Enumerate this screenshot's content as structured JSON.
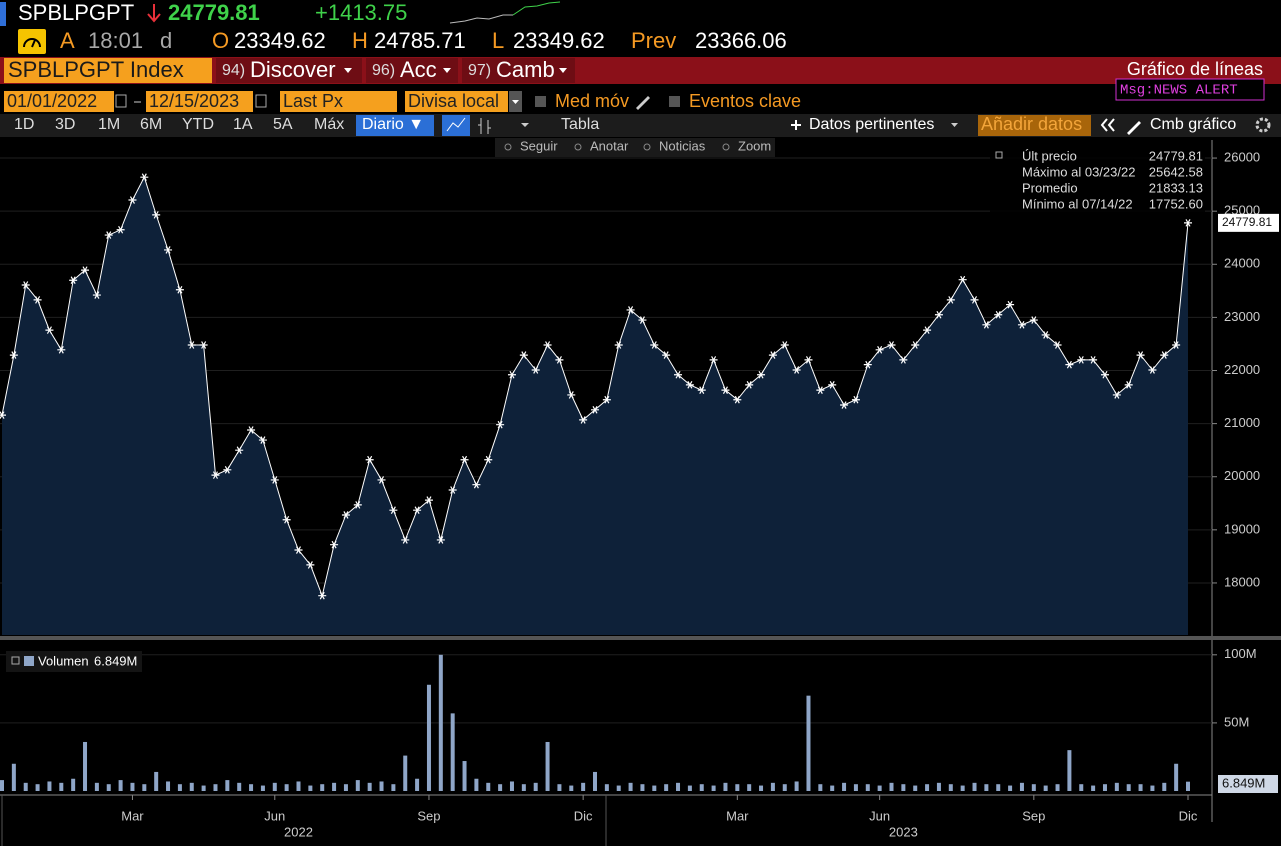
{
  "header": {
    "ticker": "SPBLPGPT",
    "last": "24779.81",
    "change": "+1413.75",
    "status": "A",
    "time": "18:01",
    "time_flag": "d",
    "open_label": "O",
    "open": "23349.62",
    "high_label": "H",
    "high": "24785.71",
    "low_label": "L",
    "low": "23349.62",
    "prev_label": "Prev",
    "prev": "23366.06"
  },
  "menu": {
    "security": "SPBLPGPT Index",
    "items": [
      {
        "num": "94)",
        "label": "Discover"
      },
      {
        "num": "96)",
        "label": "Acc"
      },
      {
        "num": "97)",
        "label": "Camb"
      }
    ],
    "title": "Gráfico de líneas",
    "msg": "Msg:NEWS ALERT"
  },
  "controls": {
    "start": "01/01/2022",
    "end": "12/15/2023",
    "field": "Last Px",
    "currency": "Divisa local",
    "ma": "Med móv",
    "events": "Eventos clave"
  },
  "toolbar": {
    "periods": [
      "1D",
      "3D",
      "1M",
      "6M",
      "YTD",
      "1A",
      "5A",
      "Máx"
    ],
    "frequency": "Diario ▼",
    "table": "Tabla",
    "related": "Datos pertinentes",
    "add": "Añadir datos",
    "change_chart": "Cmb gráfico"
  },
  "tools": [
    "Seguir",
    "Anotar",
    "Noticias",
    "Zoom"
  ],
  "chart_data": [
    {
      "type": "line",
      "categories": [
        null,
        null,
        null,
        null,
        null,
        null,
        null,
        null,
        null,
        null,
        null,
        "Mar",
        null,
        null,
        null,
        null,
        null,
        null,
        null,
        null,
        null,
        null,
        null,
        "Jun",
        null,
        null,
        null,
        null,
        null,
        null,
        null,
        null,
        null,
        null,
        null,
        null,
        "Sep",
        null,
        null,
        null,
        null,
        null,
        null,
        null,
        null,
        null,
        null,
        null,
        null,
        "Dic",
        null,
        null,
        null,
        null,
        null,
        null,
        null,
        null,
        null,
        null,
        null,
        null,
        "Mar",
        null,
        null,
        null,
        null,
        null,
        null,
        null,
        null,
        null,
        null,
        null,
        "Jun",
        null,
        null,
        null,
        null,
        null,
        null,
        null,
        null,
        null,
        null,
        null,
        null,
        "Sep",
        null,
        null,
        null,
        null,
        null,
        null,
        null,
        null,
        null,
        null,
        null,
        null,
        "Dic"
      ],
      "year_labels": [
        null,
        null,
        null,
        null,
        null,
        null,
        null,
        null,
        null,
        null,
        null,
        null,
        null,
        null,
        null,
        null,
        null,
        null,
        null,
        null,
        null,
        null,
        null,
        null,
        null,
        "2022",
        null,
        null,
        null,
        null,
        null,
        null,
        null,
        null,
        null,
        null,
        null,
        null,
        null,
        null,
        null,
        null,
        null,
        null,
        null,
        null,
        null,
        null,
        null,
        null,
        null,
        null,
        null,
        null,
        null,
        null,
        null,
        null,
        null,
        null,
        null,
        null,
        null,
        null,
        null,
        null,
        null,
        null,
        null,
        null,
        null,
        null,
        null,
        null,
        null,
        null,
        "2023",
        null,
        null,
        null,
        null,
        null,
        null,
        null,
        null,
        null,
        null,
        null,
        null,
        null,
        null,
        null,
        null,
        null,
        null,
        null,
        null,
        null,
        null,
        null,
        null
      ],
      "series": [
        {
          "name": "Últ precio",
          "color": "#ffffff",
          "area_color": "#0e2139",
          "values": [
            21160,
            22290,
            23610,
            23330,
            22760,
            22390,
            23700,
            23890,
            23420,
            24550,
            24650,
            25210,
            25640,
            24930,
            24270,
            23520,
            22480,
            22480,
            20030,
            20130,
            20500,
            20880,
            20690,
            19940,
            19190,
            18620,
            18340,
            17760,
            18720,
            19280,
            19470,
            20320,
            19940,
            19370,
            18810,
            19370,
            19560,
            18810,
            19750,
            20320,
            19850,
            20320,
            20980,
            21920,
            22290,
            22010,
            22480,
            22200,
            21540,
            21070,
            21260,
            21450,
            22480,
            23140,
            22950,
            22480,
            22290,
            21920,
            21730,
            21630,
            22200,
            21630,
            21450,
            21730,
            21920,
            22290,
            22480,
            22010,
            22200,
            21630,
            21730,
            21350,
            21450,
            22110,
            22390,
            22480,
            22200,
            22480,
            22760,
            23050,
            23330,
            23710,
            23330,
            22860,
            23050,
            23240,
            22860,
            22950,
            22670,
            22480,
            22110,
            22200,
            22200,
            21920,
            21540,
            21730,
            22290,
            22010,
            22290,
            22480,
            24779.81
          ]
        }
      ],
      "stats": [
        {
          "label": "Máximo al 03/23/22",
          "value": "25642.58"
        },
        {
          "label": "Promedio",
          "value": "21833.13"
        },
        {
          "label": "Mínimo al 07/14/22",
          "value": "17752.60"
        }
      ],
      "ylim": [
        17020,
        26340
      ],
      "yticks": [
        18000,
        19000,
        20000,
        21000,
        22000,
        23000,
        24000,
        25000,
        26000
      ],
      "grid": true
    },
    {
      "type": "bar",
      "series": [
        {
          "name": "Volumen",
          "color": "#8fa6c8",
          "values": [
            8,
            20,
            6,
            5,
            7,
            6,
            9,
            36,
            6,
            5,
            8,
            6,
            5,
            14,
            7,
            5,
            6,
            4,
            5,
            8,
            6,
            5,
            4,
            6,
            5,
            7,
            4,
            5,
            6,
            5,
            8,
            6,
            7,
            5,
            26,
            9,
            78,
            100,
            57,
            22,
            9,
            6,
            5,
            7,
            5,
            6,
            36,
            5,
            4,
            6,
            14,
            5,
            4,
            6,
            5,
            4,
            5,
            6,
            4,
            5,
            4,
            6,
            5,
            5,
            4,
            6,
            5,
            7,
            70,
            5,
            4,
            6,
            5,
            5,
            4,
            6,
            5,
            4,
            5,
            6,
            5,
            4,
            6,
            5,
            5,
            4,
            6,
            5,
            4,
            5,
            30,
            5,
            4,
            5,
            6,
            5,
            5,
            4,
            6,
            20,
            6.849
          ]
        }
      ],
      "last_label": "6.849M",
      "ylim": [
        0,
        105
      ],
      "yticks": [
        {
          "value": 50,
          "label": "50M"
        },
        {
          "value": 100,
          "label": "100M"
        }
      ],
      "grid": true
    }
  ]
}
